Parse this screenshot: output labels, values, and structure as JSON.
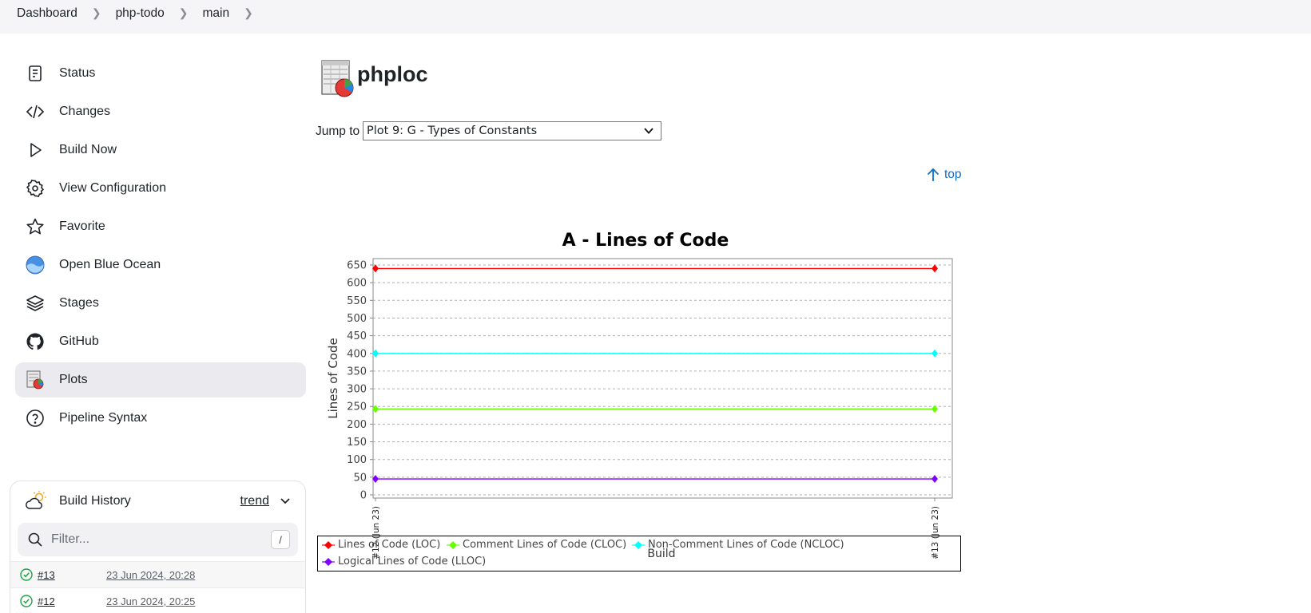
{
  "breadcrumb": [
    "Dashboard",
    "php-todo",
    "main"
  ],
  "sidebar": {
    "items": [
      {
        "label": "Status",
        "icon": "document-icon"
      },
      {
        "label": "Changes",
        "icon": "code-icon"
      },
      {
        "label": "Build Now",
        "icon": "play-icon"
      },
      {
        "label": "View Configuration",
        "icon": "gear-icon"
      },
      {
        "label": "Favorite",
        "icon": "star-icon"
      },
      {
        "label": "Open Blue Ocean",
        "icon": "blue-ocean-icon"
      },
      {
        "label": "Stages",
        "icon": "layers-icon"
      },
      {
        "label": "GitHub",
        "icon": "github-icon"
      },
      {
        "label": "Plots",
        "icon": "plots-icon"
      },
      {
        "label": "Pipeline Syntax",
        "icon": "help-circle-icon"
      }
    ],
    "active_index": 8
  },
  "build_history": {
    "title": "Build History",
    "trend_label": "trend",
    "filter_placeholder": "Filter...",
    "filter_shortcut": "/",
    "builds": [
      {
        "number": "#13",
        "date": "23 Jun 2024, 20:28"
      },
      {
        "number": "#12",
        "date": "23 Jun 2024, 20:25"
      }
    ]
  },
  "main": {
    "title": "phploc",
    "jump_label": "Jump to",
    "jump_selected": "Plot 9: G - Types of Constants",
    "top_link": "top"
  },
  "chart_data": {
    "type": "line",
    "title": "A - Lines of Code",
    "xlabel": "Build",
    "ylabel": "Lines of Code",
    "categories": [
      "#12 (Jun 23)",
      "#13 (Jun 23)"
    ],
    "ylim": [
      0,
      650
    ],
    "yticks": [
      0,
      50,
      100,
      150,
      200,
      250,
      300,
      350,
      400,
      450,
      500,
      550,
      600,
      650
    ],
    "grid": true,
    "legend_position": "bottom",
    "series": [
      {
        "name": "Lines of Code (LOC)",
        "values": [
          640,
          640
        ],
        "color": "#ff0000"
      },
      {
        "name": "Comment Lines of Code (CLOC)",
        "values": [
          243,
          243
        ],
        "color": "#66ff00"
      },
      {
        "name": "Non-Comment Lines of Code (NCLOC)",
        "values": [
          400,
          400
        ],
        "color": "#00ffff"
      },
      {
        "name": "Logical Lines of Code (LLOC)",
        "values": [
          45,
          45
        ],
        "color": "#7f00ff"
      }
    ]
  }
}
